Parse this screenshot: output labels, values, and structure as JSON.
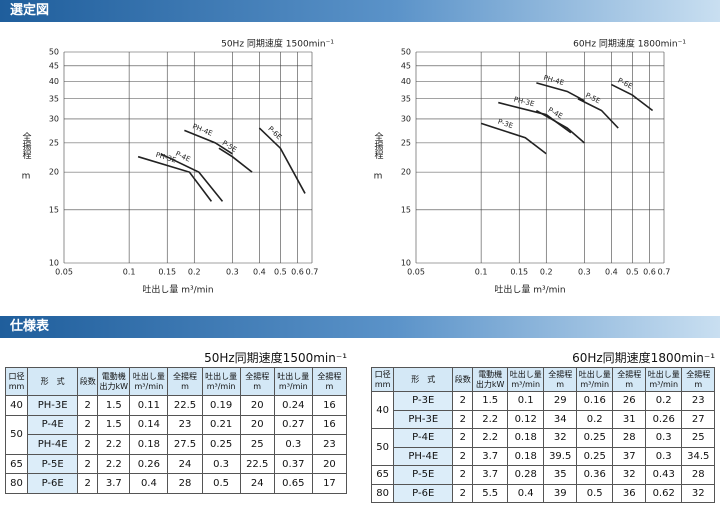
{
  "header": {
    "selection_title": "選定図",
    "spec_title": "仕様表"
  },
  "chart_data": [
    {
      "type": "line",
      "title": "50Hz 同期速度 1500min⁻¹",
      "x_label": "吐出し量 m³/min",
      "y_label": "全揚程",
      "y_unit": "m",
      "xscale": "log",
      "yscale": "log",
      "grid": true,
      "color": "#222222",
      "xlim": [
        0.05,
        0.7
      ],
      "ylim": [
        10,
        50
      ],
      "xticks": [
        0.05,
        0.1,
        0.15,
        0.2,
        0.3,
        0.4,
        0.5,
        0.6,
        0.7
      ],
      "yticks": [
        10,
        15,
        20,
        25,
        30,
        35,
        40,
        45,
        50
      ],
      "series": [
        {
          "name": "PH-3E",
          "x": [
            0.11,
            0.19,
            0.24
          ],
          "values": [
            22.5,
            20,
            16
          ]
        },
        {
          "name": "P-4E",
          "x": [
            0.14,
            0.21,
            0.27
          ],
          "values": [
            23,
            20,
            16
          ]
        },
        {
          "name": "PH-4E",
          "x": [
            0.18,
            0.25,
            0.3
          ],
          "values": [
            27.5,
            25,
            23
          ]
        },
        {
          "name": "P-5E",
          "x": [
            0.26,
            0.3,
            0.37
          ],
          "values": [
            24,
            22.5,
            20
          ]
        },
        {
          "name": "P-6E",
          "x": [
            0.4,
            0.5,
            0.65
          ],
          "values": [
            28,
            24,
            17
          ]
        }
      ]
    },
    {
      "type": "line",
      "title": "60Hz 同期速度 1800min⁻¹",
      "x_label": "吐出し量 m³/min",
      "y_label": "全揚程",
      "y_unit": "m",
      "xscale": "log",
      "yscale": "log",
      "grid": true,
      "color": "#222222",
      "xlim": [
        0.05,
        0.7
      ],
      "ylim": [
        10,
        50
      ],
      "xticks": [
        0.05,
        0.1,
        0.15,
        0.2,
        0.3,
        0.4,
        0.5,
        0.6,
        0.7
      ],
      "yticks": [
        10,
        15,
        20,
        25,
        30,
        35,
        40,
        45,
        50
      ],
      "series": [
        {
          "name": "P-3E",
          "x": [
            0.1,
            0.16,
            0.2
          ],
          "values": [
            29,
            26,
            23
          ]
        },
        {
          "name": "PH-3E",
          "x": [
            0.12,
            0.2,
            0.26
          ],
          "values": [
            34,
            31,
            27
          ]
        },
        {
          "name": "P-4E",
          "x": [
            0.18,
            0.25,
            0.3
          ],
          "values": [
            32,
            28,
            25
          ]
        },
        {
          "name": "PH-4E",
          "x": [
            0.18,
            0.25,
            0.3
          ],
          "values": [
            39.5,
            37,
            34.5
          ]
        },
        {
          "name": "P-5E",
          "x": [
            0.28,
            0.36,
            0.43
          ],
          "values": [
            35,
            32,
            28
          ]
        },
        {
          "name": "P-6E",
          "x": [
            0.4,
            0.5,
            0.62
          ],
          "values": [
            39,
            36,
            32
          ]
        }
      ]
    }
  ],
  "tables": [
    {
      "title": "50Hz同期速度1500min⁻¹",
      "header": [
        [
          "口径",
          "mm"
        ],
        [
          "形　式"
        ],
        [
          "段数"
        ],
        [
          "電動機",
          "出力kW"
        ],
        [
          "吐出し量",
          "m³/min"
        ],
        [
          "全揚程",
          "m"
        ],
        [
          "吐出し量",
          "m³/min"
        ],
        [
          "全揚程",
          "m"
        ],
        [
          "吐出し量",
          "m³/min"
        ],
        [
          "全揚程",
          "m"
        ]
      ],
      "rows": [
        [
          "40",
          "PH-3E",
          "2",
          "1.5",
          "0.11",
          "22.5",
          "0.19",
          "20",
          "0.24",
          "16"
        ],
        [
          "50",
          "P-4E",
          "2",
          "1.5",
          "0.14",
          "23",
          "0.21",
          "20",
          "0.27",
          "16"
        ],
        [
          null,
          "PH-4E",
          "2",
          "2.2",
          "0.18",
          "27.5",
          "0.25",
          "25",
          "0.3",
          "23"
        ],
        [
          "65",
          "P-5E",
          "2",
          "2.2",
          "0.26",
          "24",
          "0.3",
          "22.5",
          "0.37",
          "20"
        ],
        [
          "80",
          "P-6E",
          "2",
          "3.7",
          "0.4",
          "28",
          "0.5",
          "24",
          "0.65",
          "17"
        ]
      ]
    },
    {
      "title": "60Hz同期速度1800min⁻¹",
      "header": [
        [
          "口径",
          "mm"
        ],
        [
          "形　式"
        ],
        [
          "段数"
        ],
        [
          "電動機",
          "出力kW"
        ],
        [
          "吐出し量",
          "m³/min"
        ],
        [
          "全揚程",
          "m"
        ],
        [
          "吐出し量",
          "m³/min"
        ],
        [
          "全揚程",
          "m"
        ],
        [
          "吐出し量",
          "m³/min"
        ],
        [
          "全揚程",
          "m"
        ]
      ],
      "rows": [
        [
          "40",
          "P-3E",
          "2",
          "1.5",
          "0.1",
          "29",
          "0.16",
          "26",
          "0.2",
          "23"
        ],
        [
          null,
          "PH-3E",
          "2",
          "2.2",
          "0.12",
          "34",
          "0.2",
          "31",
          "0.26",
          "27"
        ],
        [
          "50",
          "P-4E",
          "2",
          "2.2",
          "0.18",
          "32",
          "0.25",
          "28",
          "0.3",
          "25"
        ],
        [
          null,
          "PH-4E",
          "2",
          "3.7",
          "0.18",
          "39.5",
          "0.25",
          "37",
          "0.3",
          "34.5"
        ],
        [
          "65",
          "P-5E",
          "2",
          "3.7",
          "0.28",
          "35",
          "0.36",
          "32",
          "0.43",
          "28"
        ],
        [
          "80",
          "P-6E",
          "2",
          "5.5",
          "0.4",
          "39",
          "0.5",
          "36",
          "0.62",
          "32"
        ]
      ]
    }
  ]
}
